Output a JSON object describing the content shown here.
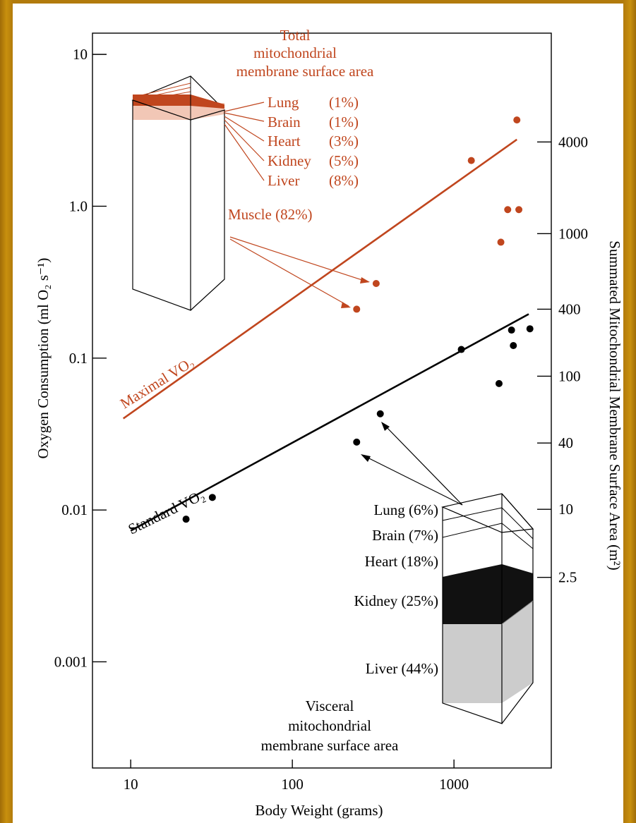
{
  "chart_data": {
    "type": "scatter",
    "xlabel": "Body Weight (grams)",
    "ylabel_left": "Oxygen Consumption (ml O₂ s⁻¹)",
    "ylabel_right": "Summated Mitochondrial Membrane Surface Area (m²)",
    "x_scale": "log",
    "y_scale": "log",
    "xlim": [
      5.8,
      4000
    ],
    "ylim": [
      0.0002,
      13.8
    ],
    "x_ticks": [
      10,
      100,
      1000
    ],
    "x_tick_labels": [
      "10",
      "100",
      "1000"
    ],
    "y_left_ticks": [
      10,
      1,
      0.1,
      0.01,
      0.001
    ],
    "y_left_tick_labels": [
      "10",
      "1.0",
      "0.1",
      "0.01",
      "0.001"
    ],
    "y_right_ticks_at_left_value": [
      2.65,
      0.66,
      0.21,
      0.076,
      0.0276,
      0.0101,
      0.0036
    ],
    "y_right_tick_labels": [
      "4000",
      "1000",
      "400",
      "100",
      "40",
      "10",
      "2.5"
    ],
    "grid": false,
    "colors": {
      "maximal": "#c0461e",
      "standard": "#000000",
      "liver_fill": "#cccccc",
      "muscle_band": "#c0461e"
    },
    "series": [
      {
        "name": "Maximal VO₂",
        "color": "#c0461e",
        "points": [
          {
            "x": 250,
            "y": 0.21
          },
          {
            "x": 330,
            "y": 0.31
          },
          {
            "x": 1280,
            "y": 2.0
          },
          {
            "x": 1950,
            "y": 0.58
          },
          {
            "x": 2150,
            "y": 0.95
          },
          {
            "x": 2450,
            "y": 3.7
          },
          {
            "x": 2520,
            "y": 0.95
          }
        ],
        "fit": [
          {
            "x": 9,
            "y": 0.04
          },
          {
            "x": 2450,
            "y": 2.75
          }
        ]
      },
      {
        "name": "Standard VO₂",
        "color": "#000000",
        "points": [
          {
            "x": 22,
            "y": 0.0087
          },
          {
            "x": 32,
            "y": 0.0121
          },
          {
            "x": 250,
            "y": 0.028
          },
          {
            "x": 350,
            "y": 0.043
          },
          {
            "x": 1110,
            "y": 0.114
          },
          {
            "x": 1900,
            "y": 0.068
          },
          {
            "x": 2270,
            "y": 0.153
          },
          {
            "x": 2330,
            "y": 0.121
          },
          {
            "x": 2950,
            "y": 0.156
          }
        ],
        "fit": [
          {
            "x": 10,
            "y": 0.0073
          },
          {
            "x": 2900,
            "y": 0.195
          }
        ]
      }
    ],
    "annotations": {
      "top_title_lines": [
        "Total",
        "mitochondrial",
        "membrane surface area"
      ],
      "top_organs": [
        {
          "organ": "Lung",
          "pct": "(1%)"
        },
        {
          "organ": "Brain",
          "pct": "(1%)"
        },
        {
          "organ": "Heart",
          "pct": "(3%)"
        },
        {
          "organ": "Kidney",
          "pct": "(5%)"
        },
        {
          "organ": "Liver",
          "pct": "(8%)"
        }
      ],
      "muscle": "Muscle (82%)",
      "bottom_organs": [
        "Lung (6%)",
        "Brain (7%)",
        "Heart (18%)",
        "Kidney (25%)",
        "Liver (44%)"
      ],
      "bottom_title_lines": [
        "Visceral",
        "mitochondrial",
        "membrane surface area"
      ]
    }
  }
}
